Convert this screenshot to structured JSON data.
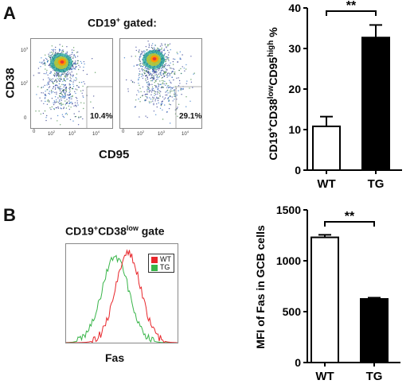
{
  "panel_a": {
    "letter": "A",
    "gate_title_main": "CD19",
    "gate_title_sup": "+",
    "gate_title_rest": " gated:",
    "flow_ylabel": "CD38",
    "flow_xlabel": "CD95",
    "flow_pct_left": "10.4%",
    "flow_pct_right": "29.1%",
    "flow_xticks": [
      "0",
      "10",
      "2",
      "10",
      "3",
      "10",
      "4"
    ],
    "flow_yticks": [
      "10",
      "3",
      "10",
      "2",
      "0"
    ]
  },
  "panel_b": {
    "letter": "B",
    "gate_title_main": "CD19",
    "gate_title_sup": "+",
    "gate_title_mid": "CD38",
    "gate_title_sup2": "low",
    "gate_title_rest": " gate",
    "hist_xlabel": "Fas",
    "legend": [
      {
        "label": "WT",
        "color": "#e8262b"
      },
      {
        "label": "TG",
        "color": "#39b54a"
      }
    ]
  },
  "chart_data": [
    {
      "type": "bar",
      "categories": [
        "WT",
        "TG"
      ],
      "values": [
        10.8,
        32.7
      ],
      "errors": [
        2.4,
        3.1
      ],
      "fills": [
        "#ffffff",
        "#000000"
      ],
      "ylim": [
        0,
        40
      ],
      "yticks": [
        "0",
        "10",
        "20",
        "30",
        "40"
      ],
      "ylabel": "CD19+CD38lowCD95high %",
      "ylabel_parts": [
        "CD19",
        "+",
        "CD38",
        "low",
        "CD95",
        "high",
        " %"
      ],
      "significance": "**"
    },
    {
      "type": "bar",
      "categories": [
        "WT",
        "TG"
      ],
      "values": [
        1230,
        625
      ],
      "errors": [
        25,
        12
      ],
      "fills": [
        "#ffffff",
        "#000000"
      ],
      "ylim": [
        0,
        1500
      ],
      "yticks": [
        "0",
        "500",
        "1000",
        "1500"
      ],
      "ylabel": "MFI of Fas in GCB cells",
      "significance": "**"
    }
  ]
}
